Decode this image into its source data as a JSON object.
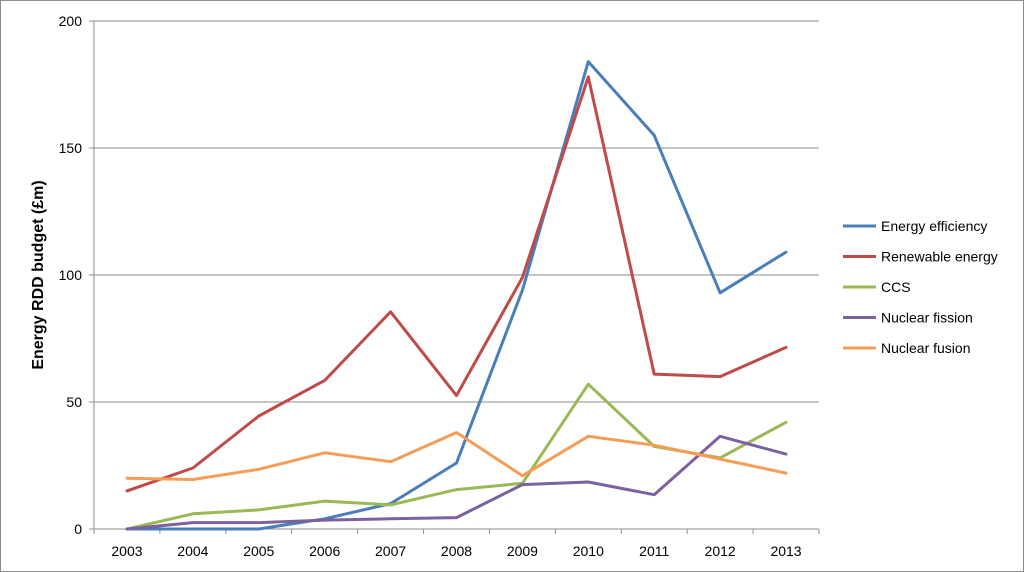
{
  "chart_data": {
    "type": "line",
    "title": "",
    "xlabel": "",
    "ylabel": "Energy RDD budget (£m)",
    "x": [
      "2003",
      "2004",
      "2005",
      "2006",
      "2007",
      "2008",
      "2009",
      "2010",
      "2011",
      "2012",
      "2013"
    ],
    "yticks": [
      "0",
      "50",
      "100",
      "150",
      "200"
    ],
    "ylim": [
      0,
      200
    ],
    "grid": "horizontal",
    "legend_position": "right",
    "series": [
      {
        "name": "Energy efficiency",
        "color": "#4a7ebb",
        "values": [
          0,
          0,
          0,
          4,
          10,
          26,
          94,
          184,
          155,
          93,
          109
        ]
      },
      {
        "name": "Renewable energy",
        "color": "#be4b48",
        "values": [
          15,
          24,
          44.5,
          58.5,
          85.5,
          52.5,
          99,
          178,
          61,
          60,
          71.5
        ]
      },
      {
        "name": "CCS",
        "color": "#98b954",
        "values": [
          0,
          6,
          7.5,
          11,
          9.5,
          15.5,
          18,
          57,
          32.5,
          28,
          42
        ]
      },
      {
        "name": "Nuclear fission",
        "color": "#7d60a0",
        "values": [
          0,
          2.5,
          2.5,
          3.5,
          4,
          4.5,
          17.5,
          18.5,
          13.5,
          36.5,
          29.5
        ]
      },
      {
        "name": "Nuclear fusion",
        "color": "#f59d56",
        "values": [
          20,
          19.5,
          23.5,
          30,
          26.5,
          38,
          21,
          36.5,
          33,
          27.5,
          22
        ]
      }
    ]
  }
}
